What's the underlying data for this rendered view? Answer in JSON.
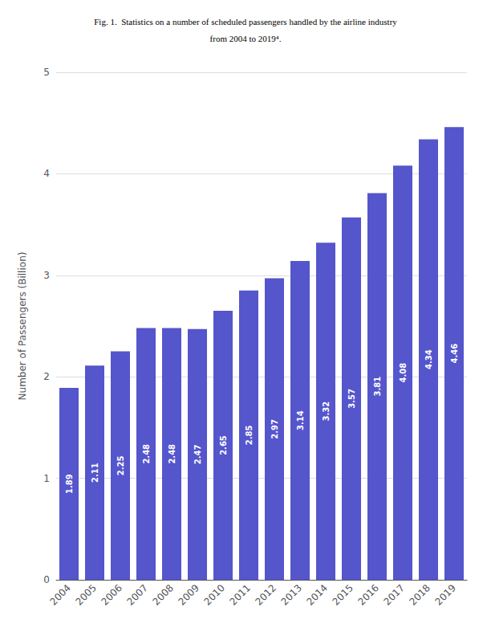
{
  "chart_data": {
    "type": "bar",
    "title": "Fig. 1.  Statistics on a number of scheduled passengers handled by the airline industry",
    "subtitle": "from 2004 to 2019⁴.",
    "categories": [
      "2004",
      "2005",
      "2006",
      "2007",
      "2008",
      "2009",
      "2010",
      "2011",
      "2012",
      "2013",
      "2014",
      "2015",
      "2016",
      "2017",
      "2018",
      "2019"
    ],
    "values": [
      1.89,
      2.11,
      2.25,
      2.48,
      2.48,
      2.47,
      2.65,
      2.85,
      2.97,
      3.14,
      3.32,
      3.57,
      3.81,
      4.08,
      4.34,
      4.46
    ],
    "color": "#5555cc",
    "ylabel": "Number of Passengers (Billion)",
    "ylim": [
      0,
      5
    ],
    "yticks": [
      0,
      1,
      2,
      3,
      4,
      5
    ],
    "grid": true,
    "data_labels": true
  }
}
